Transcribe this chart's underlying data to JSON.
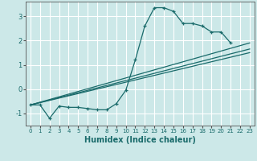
{
  "background_color": "#cce8e8",
  "grid_color": "#ffffff",
  "line_color": "#1a6b6b",
  "xlabel": "Humidex (Indice chaleur)",
  "xlim": [
    -0.5,
    23.5
  ],
  "ylim": [
    -1.5,
    3.6
  ],
  "yticks": [
    -1,
    0,
    1,
    2,
    3
  ],
  "xticks": [
    0,
    1,
    2,
    3,
    4,
    5,
    6,
    7,
    8,
    9,
    10,
    11,
    12,
    13,
    14,
    15,
    16,
    17,
    18,
    19,
    20,
    21,
    22,
    23
  ],
  "x_main": [
    0,
    1,
    2,
    3,
    4,
    5,
    6,
    7,
    8,
    9,
    10,
    11,
    12,
    13,
    14,
    15,
    16,
    17,
    18,
    19,
    20,
    21
  ],
  "y_main": [
    -0.65,
    -0.65,
    -1.2,
    -0.7,
    -0.75,
    -0.75,
    -0.8,
    -0.85,
    -0.85,
    -0.6,
    -0.05,
    1.2,
    2.6,
    3.35,
    3.35,
    3.2,
    2.7,
    2.7,
    2.6,
    2.35,
    2.35,
    1.9
  ],
  "line1": {
    "x": [
      0,
      23
    ],
    "y": [
      -0.65,
      1.9
    ]
  },
  "line2": {
    "x": [
      0,
      23
    ],
    "y": [
      -0.65,
      1.65
    ]
  },
  "line3": {
    "x": [
      0,
      23
    ],
    "y": [
      -0.65,
      1.5
    ]
  }
}
